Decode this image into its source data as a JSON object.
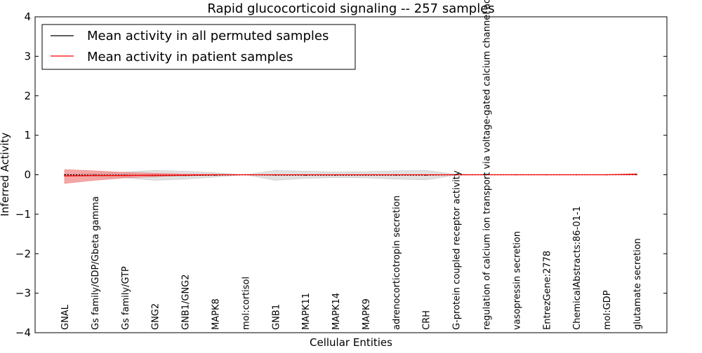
{
  "chart_data": {
    "type": "line",
    "title": "Rapid glucocorticoid signaling -- 257 samples",
    "xlabel": "Cellular Entities",
    "ylabel": "Inferred Activity",
    "ylim": [
      -4,
      4
    ],
    "yticks": [
      -4,
      -3,
      -2,
      -1,
      0,
      1,
      2,
      3,
      4
    ],
    "ytick_labels": [
      "−4",
      "−3",
      "−2",
      "−1",
      "0",
      "1",
      "2",
      "3",
      "4"
    ],
    "categories": [
      "GNAL",
      "Gs family/GDP/Gbeta gamma",
      "Gs family/GTP",
      "GNG2",
      "GNB1/GNG2",
      "MAPK8",
      "mol:cortisol",
      "GNB1",
      "MAPK11",
      "MAPK14",
      "MAPK9",
      "adrenocorticotropin secretion",
      "CRH",
      "G-protein coupled receptor activity",
      "regulation of calcium ion transport via voltage-gated calcium channel activity",
      "vasopressin secretion",
      "EntrezGene:2778",
      "ChemicalAbstracts:86-01-1",
      "mol:GDP",
      "glutamate secretion"
    ],
    "legend_position": "top-left",
    "series": [
      {
        "name": "Mean activity in all permuted samples",
        "color": "#000000",
        "values": [
          0,
          -0.01,
          -0.01,
          -0.02,
          -0.02,
          -0.01,
          0,
          -0.01,
          -0.01,
          -0.01,
          -0.01,
          -0.01,
          -0.01,
          0,
          0,
          0,
          0,
          0,
          0,
          0
        ],
        "band_lower": [
          -0.02,
          -0.05,
          -0.08,
          -0.14,
          -0.11,
          -0.06,
          0,
          -0.14,
          -0.09,
          -0.07,
          -0.08,
          -0.11,
          -0.13,
          -0.01,
          0,
          0,
          0,
          0,
          0,
          0
        ],
        "band_upper": [
          0.02,
          0.04,
          0.07,
          0.11,
          0.09,
          0.05,
          0,
          0.11,
          0.09,
          0.07,
          0.08,
          0.1,
          0.11,
          0.01,
          0,
          0,
          0,
          0,
          0,
          0
        ],
        "band_color": "#c8c8c8"
      },
      {
        "name": "Mean activity in patient samples",
        "color": "#ff0000",
        "values": [
          -0.03,
          -0.02,
          -0.02,
          -0.01,
          -0.01,
          0,
          0,
          0,
          0,
          0,
          0,
          0,
          0,
          0,
          0,
          0,
          0,
          0,
          0,
          0.01
        ],
        "band_lower": [
          -0.22,
          -0.14,
          -0.08,
          -0.05,
          -0.02,
          -0.01,
          0,
          0,
          0,
          0,
          0,
          0,
          0,
          0,
          0,
          0,
          0,
          0,
          0,
          0
        ],
        "band_upper": [
          0.13,
          0.1,
          0.06,
          0.04,
          0.02,
          0.01,
          0,
          0,
          0,
          0,
          0,
          0,
          0,
          0,
          0,
          0,
          0,
          0,
          0,
          0.03
        ],
        "band_color": "#f08080"
      }
    ]
  }
}
